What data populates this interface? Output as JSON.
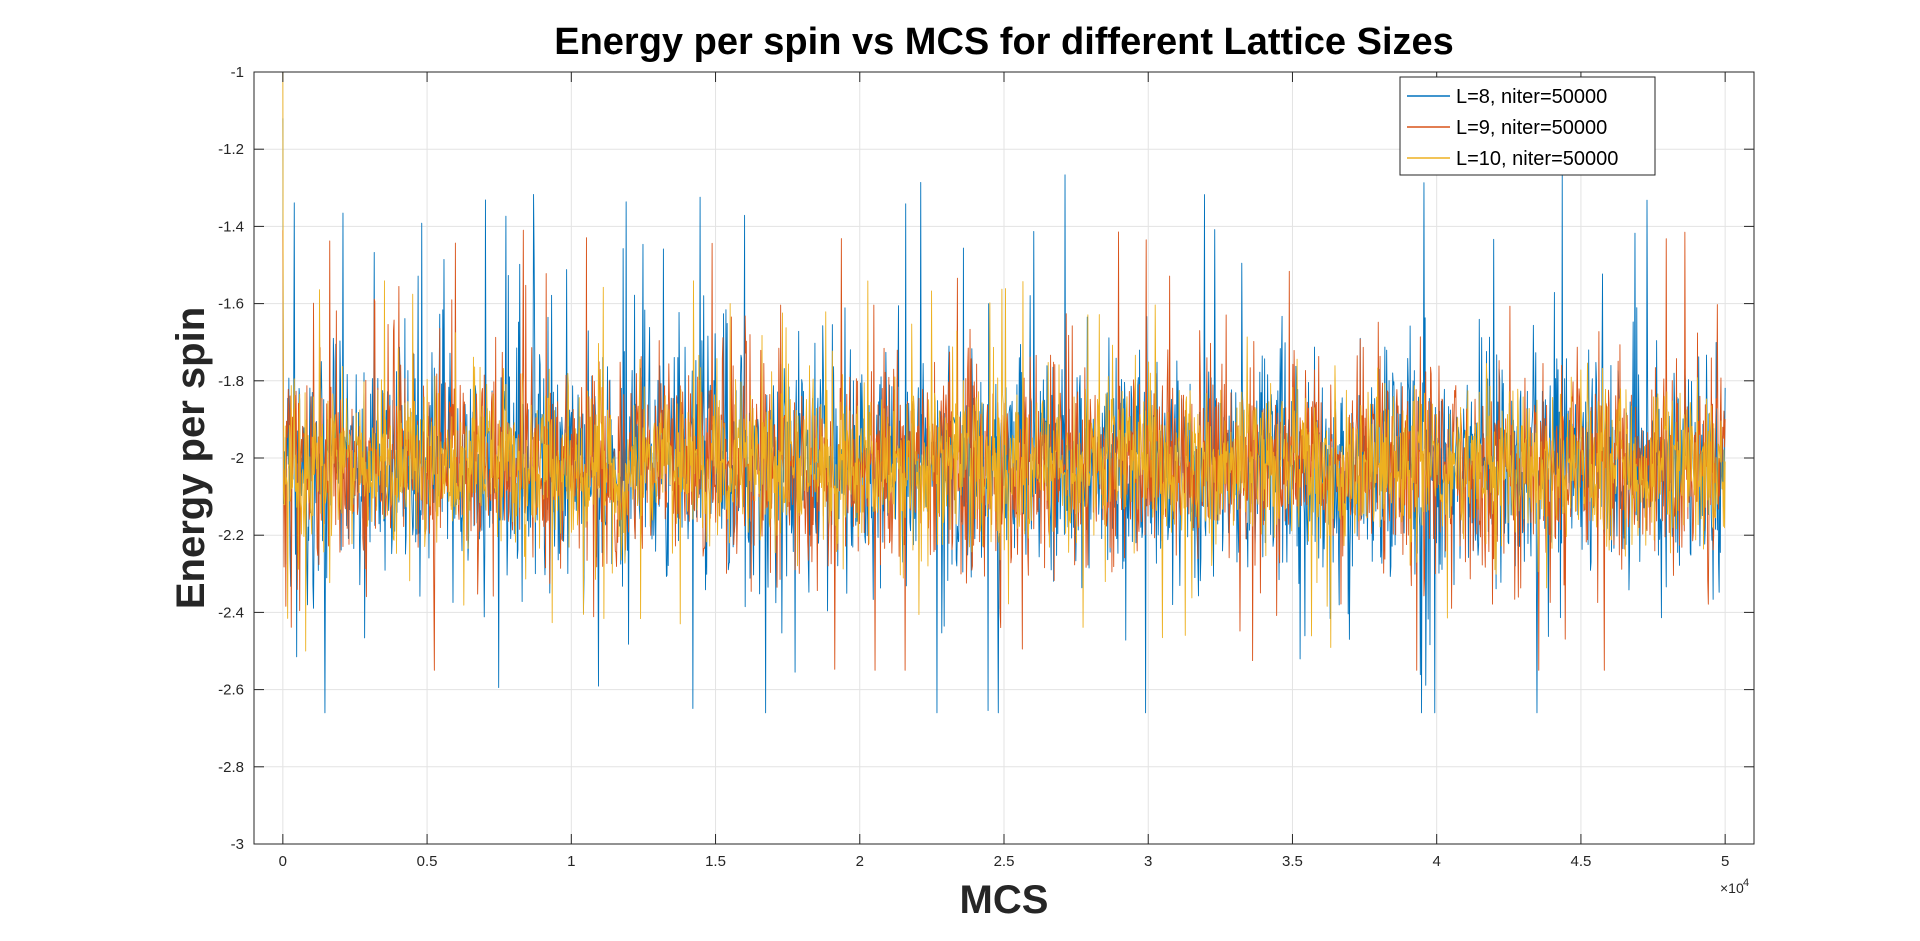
{
  "chart_data": {
    "type": "line",
    "title": "Energy per spin vs MCS for different Lattice Sizes",
    "xlabel": "MCS",
    "ylabel": "Energy per spin",
    "x_exponent_label": "×10",
    "x_exponent_power": "4",
    "xlim": [
      -1000,
      51000
    ],
    "ylim": [
      -3,
      -1
    ],
    "x_ticks": [
      0,
      5000,
      10000,
      15000,
      20000,
      25000,
      30000,
      35000,
      40000,
      45000,
      50000
    ],
    "x_tick_labels": [
      "0",
      "0.5",
      "1",
      "1.5",
      "2",
      "2.5",
      "3",
      "3.5",
      "4",
      "4.5",
      "5"
    ],
    "y_ticks": [
      -3,
      -2.8,
      -2.6,
      -2.4,
      -2.2,
      -2,
      -1.8,
      -1.6,
      -1.4,
      -1.2,
      -1
    ],
    "y_tick_labels": [
      "-3",
      "-2.8",
      "-2.6",
      "-2.4",
      "-2.2",
      "-2",
      "-1.8",
      "-1.6",
      "-1.4",
      "-1.2",
      "-1"
    ],
    "grid": true,
    "legend_position": "top-right",
    "x_range": [
      0,
      50000
    ],
    "series": [
      {
        "name": "L=8, niter=50000",
        "color": "#0072BD",
        "mean": -2.02,
        "std": 0.155,
        "min": -2.66,
        "max": -1.12
      },
      {
        "name": "L=9, niter=50000",
        "color": "#D95319",
        "mean": -2.02,
        "std": 0.125,
        "min": -2.55,
        "max": -1.41
      },
      {
        "name": "L=10, niter=50000",
        "color": "#EDB120",
        "mean": -2.02,
        "std": 0.1,
        "min": -2.5,
        "max": -1.0
      }
    ]
  }
}
